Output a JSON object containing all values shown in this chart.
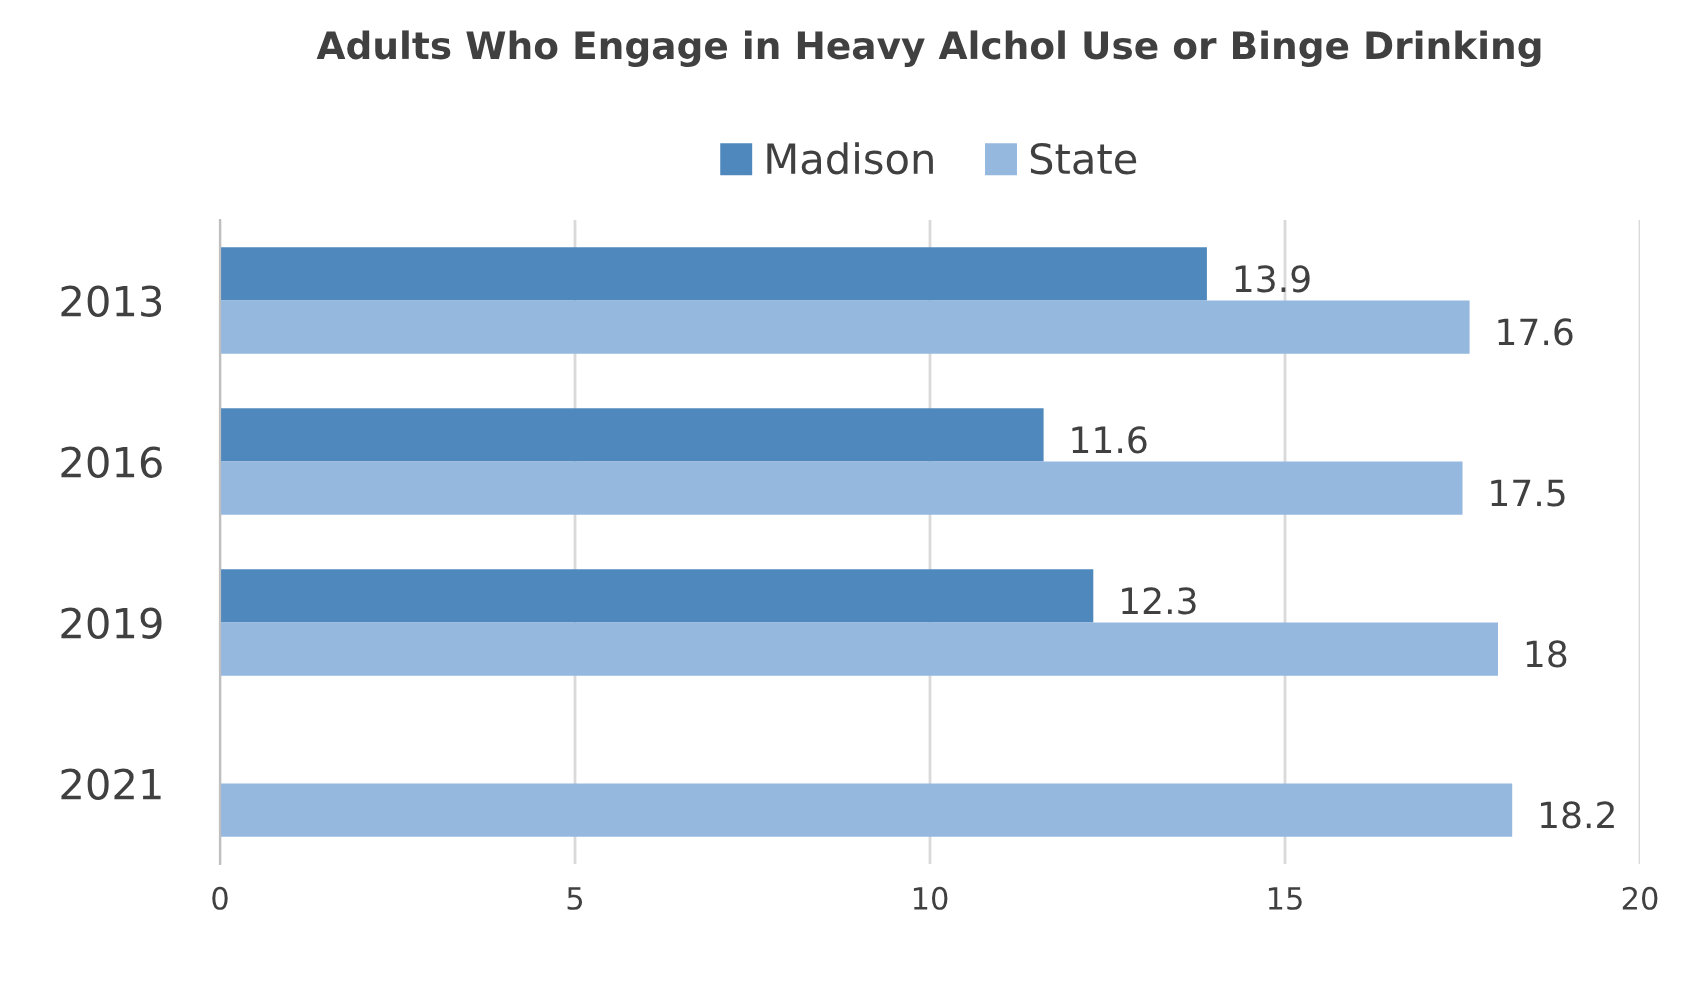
{
  "chart_data": {
    "type": "bar",
    "orientation": "horizontal",
    "title": "Adults Who Engage in Heavy Alchol Use or Binge Drinking",
    "categories": [
      "2013",
      "2016",
      "2019",
      "2021"
    ],
    "series": [
      {
        "name": "Madison",
        "color": "#4f88bd",
        "values": [
          13.9,
          11.6,
          12.3,
          null
        ]
      },
      {
        "name": "State",
        "color": "#95b8df",
        "values": [
          17.6,
          17.5,
          18,
          18.2
        ]
      }
    ],
    "xlim": [
      0,
      20
    ],
    "xticks": [
      0,
      5,
      10,
      15,
      20
    ],
    "grid": "x",
    "legend": "top",
    "data_labels": true
  }
}
